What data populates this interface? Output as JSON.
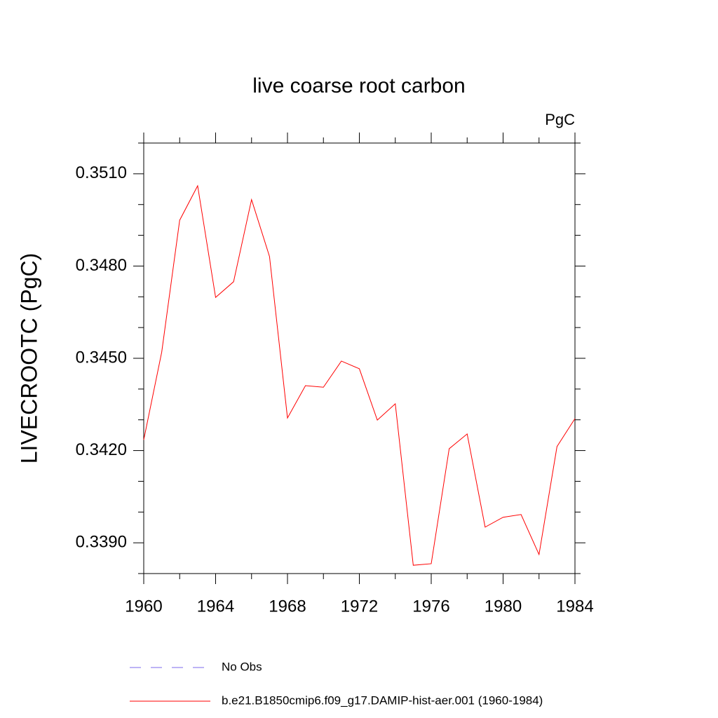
{
  "chart_data": {
    "type": "line",
    "title": "live coarse root carbon",
    "units": "PgC",
    "y_label": "LIVECROOTC  (PgC)",
    "x": [
      1960,
      1961,
      1962,
      1963,
      1964,
      1965,
      1966,
      1967,
      1968,
      1969,
      1970,
      1971,
      1972,
      1973,
      1974,
      1975,
      1976,
      1977,
      1978,
      1979,
      1980,
      1981,
      1982,
      1983,
      1984
    ],
    "series": [
      {
        "name": "b.e21.B1850cmip6.f09_g17.DAMIP-hist-aer.001 (1960-1984)",
        "color": "#ff0000",
        "values": [
          0.34235,
          0.3452,
          0.34949,
          0.35061,
          0.34698,
          0.34749,
          0.35016,
          0.34831,
          0.34306,
          0.34411,
          0.34406,
          0.34491,
          0.34466,
          0.34299,
          0.34352,
          0.33827,
          0.33832,
          0.34206,
          0.34254,
          0.33951,
          0.33983,
          0.33992,
          0.33862,
          0.34213,
          0.34304
        ]
      }
    ],
    "extra_legend": [
      {
        "name": "No Obs",
        "color": "#7b68ee",
        "dashed": true
      }
    ],
    "xlim": [
      1960,
      1984
    ],
    "xticks": [
      1960,
      1964,
      1968,
      1972,
      1976,
      1980,
      1984
    ],
    "xminorticks": [
      1962,
      1966,
      1970,
      1974,
      1978,
      1982
    ],
    "ylim": [
      0.338,
      0.352
    ],
    "yticks": [
      {
        "value": 0.339,
        "label": "0.3390"
      },
      {
        "value": 0.342,
        "label": "0.3420"
      },
      {
        "value": 0.345,
        "label": "0.3450"
      },
      {
        "value": 0.348,
        "label": "0.3480"
      },
      {
        "value": 0.351,
        "label": "0.3510"
      }
    ],
    "yminorticks": [
      0.338,
      0.34,
      0.341,
      0.343,
      0.344,
      0.346,
      0.347,
      0.349,
      0.35,
      0.352
    ]
  }
}
